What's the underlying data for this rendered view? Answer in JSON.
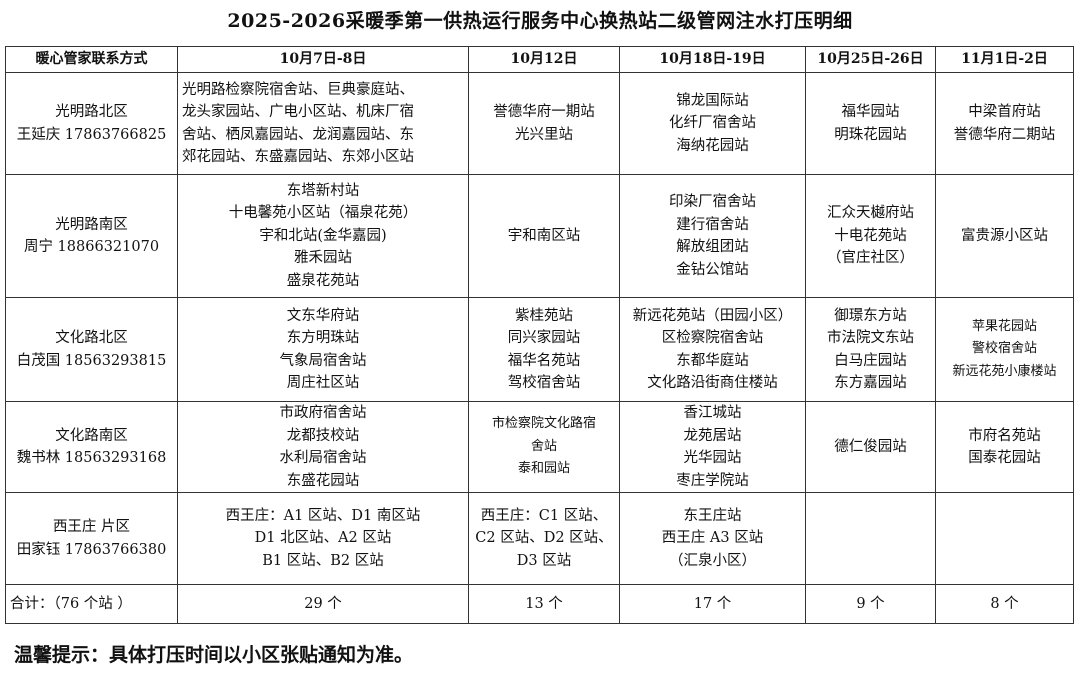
{
  "title": "2025-2026采暖季第一供热运行服务中心换热站二级管网注水打压明细",
  "table": {
    "headers": [
      "暖心管家联系方式",
      "10月7日-8日",
      "10月12日",
      "10月18日-19日",
      "10月25日-26日",
      "11月1日-2日"
    ],
    "rows": [
      {
        "contact": "光明路北区\n王延庆 17863766825",
        "cells": [
          "光明路检察院宿舍站、巨典豪庭站、\n龙头家园站、广电小区站、机床厂宿\n舍站、栖凤嘉园站、龙润嘉园站、东\n郊花园站、东盛嘉园站、东郊小区站",
          "誉德华府一期站\n光兴里站",
          "锦龙国际站\n化纤厂宿舍站\n海纳花园站",
          "福华园站\n明珠花园站",
          "中梁首府站\n誉德华府二期站"
        ]
      },
      {
        "contact": "光明路南区\n周宁 18866321070",
        "cells": [
          "东塔新村站\n十电馨苑小区站（福泉花苑）\n宇和北站(金华嘉园)\n雅禾园站\n盛泉花苑站",
          "宇和南区站",
          "印染厂宿舍站\n建行宿舍站\n解放组团站\n金钻公馆站",
          "汇众天樾府站\n十电花苑站\n（官庄社区）",
          "富贵源小区站"
        ]
      },
      {
        "contact": "文化路北区\n白茂国 18563293815",
        "cells": [
          "文东华府站\n东方明珠站\n气象局宿舍站\n周庄社区站",
          "紫桂苑站\n同兴家园站\n福华名苑站\n驾校宿舍站",
          "新远花苑站（田园小区）\n区检察院宿舍站\n东都华庭站\n文化路沿街商住楼站",
          "御璟东方站\n市法院文东站\n白马庄园站\n东方嘉园站",
          "苹果花园站\n警校宿舍站\n新远花苑小康楼站"
        ]
      },
      {
        "contact": "文化路南区\n魏书林 18563293168",
        "cells": [
          "市政府宿舍站\n龙都技校站\n水利局宿舍站\n东盛花园站",
          "市检察院文化路宿\n舍站\n泰和园站",
          "香江城站\n龙苑居站\n光华园站\n枣庄学院站",
          "德仁俊园站",
          "市府名苑站\n国泰花园站"
        ]
      },
      {
        "contact": "西王庄 片区\n田家钰 17863766380",
        "cells": [
          "西王庄：A1 区站、D1 南区站\nD1 北区站、A2 区站\nB1 区站、B2 区站",
          "西王庄：C1 区站、\nC2 区站、D2 区站、\nD3 区站",
          "东王庄站\n西王庄 A3 区站\n（汇泉小区）",
          "",
          ""
        ]
      }
    ],
    "total": {
      "label": "合计：（76 个站 ）",
      "cells": [
        "29 个",
        "13 个",
        "17 个",
        "9 个",
        "8 个"
      ]
    }
  },
  "tip": "温馨提示：具体打压时间以小区张贴通知为准。"
}
